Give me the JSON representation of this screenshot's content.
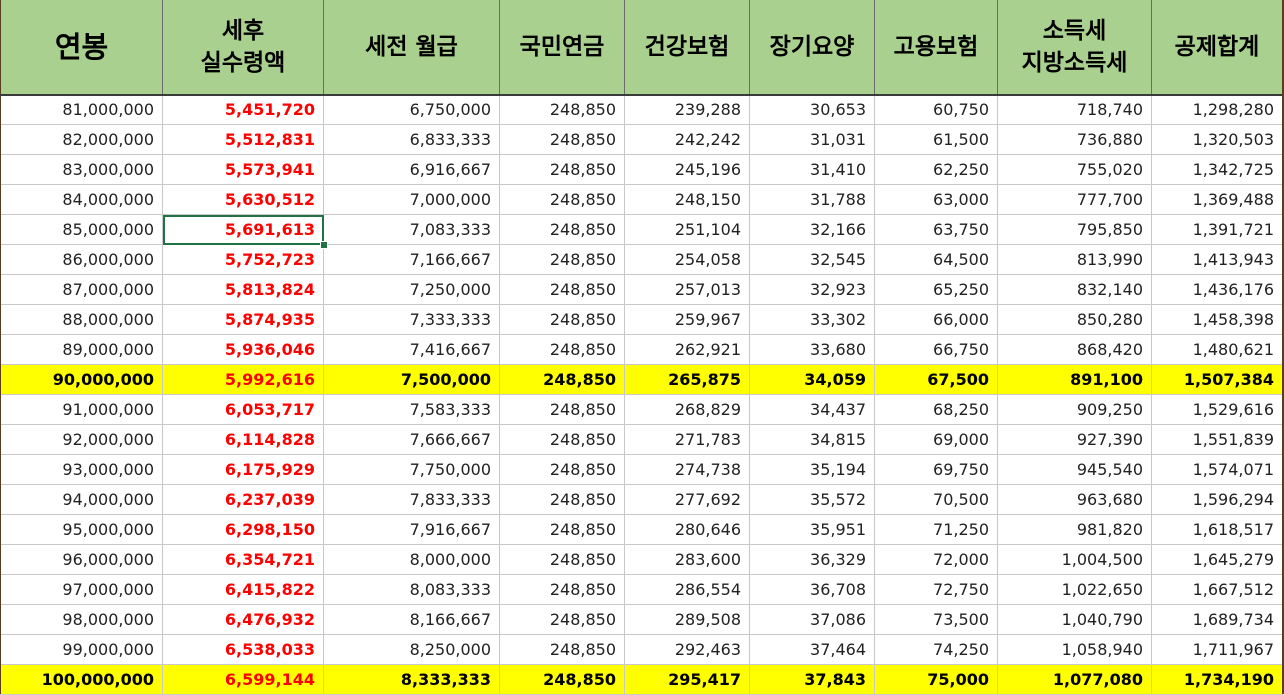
{
  "headers": [
    {
      "lines": [
        "연봉"
      ]
    },
    {
      "lines": [
        "세후",
        "실수령액"
      ]
    },
    {
      "lines": [
        "세전 월급"
      ]
    },
    {
      "lines": [
        "국민연금"
      ]
    },
    {
      "lines": [
        "건강보험"
      ]
    },
    {
      "lines": [
        "장기요양"
      ]
    },
    {
      "lines": [
        "고용보험"
      ]
    },
    {
      "lines": [
        "소득세",
        "지방소득세"
      ]
    },
    {
      "lines": [
        "공제합계"
      ]
    }
  ],
  "rows": [
    {
      "highlight": false,
      "cells": [
        "81,000,000",
        "5,451,720",
        "6,750,000",
        "248,850",
        "239,288",
        "30,653",
        "60,750",
        "718,740",
        "1,298,280"
      ]
    },
    {
      "highlight": false,
      "cells": [
        "82,000,000",
        "5,512,831",
        "6,833,333",
        "248,850",
        "242,242",
        "31,031",
        "61,500",
        "736,880",
        "1,320,503"
      ]
    },
    {
      "highlight": false,
      "cells": [
        "83,000,000",
        "5,573,941",
        "6,916,667",
        "248,850",
        "245,196",
        "31,410",
        "62,250",
        "755,020",
        "1,342,725"
      ]
    },
    {
      "highlight": false,
      "cells": [
        "84,000,000",
        "5,630,512",
        "7,000,000",
        "248,850",
        "248,150",
        "31,788",
        "63,000",
        "777,700",
        "1,369,488"
      ]
    },
    {
      "highlight": false,
      "selected_col": 1,
      "cells": [
        "85,000,000",
        "5,691,613",
        "7,083,333",
        "248,850",
        "251,104",
        "32,166",
        "63,750",
        "795,850",
        "1,391,721"
      ]
    },
    {
      "highlight": false,
      "cells": [
        "86,000,000",
        "5,752,723",
        "7,166,667",
        "248,850",
        "254,058",
        "32,545",
        "64,500",
        "813,990",
        "1,413,943"
      ]
    },
    {
      "highlight": false,
      "cells": [
        "87,000,000",
        "5,813,824",
        "7,250,000",
        "248,850",
        "257,013",
        "32,923",
        "65,250",
        "832,140",
        "1,436,176"
      ]
    },
    {
      "highlight": false,
      "cells": [
        "88,000,000",
        "5,874,935",
        "7,333,333",
        "248,850",
        "259,967",
        "33,302",
        "66,000",
        "850,280",
        "1,458,398"
      ]
    },
    {
      "highlight": false,
      "cells": [
        "89,000,000",
        "5,936,046",
        "7,416,667",
        "248,850",
        "262,921",
        "33,680",
        "66,750",
        "868,420",
        "1,480,621"
      ]
    },
    {
      "highlight": true,
      "cells": [
        "90,000,000",
        "5,992,616",
        "7,500,000",
        "248,850",
        "265,875",
        "34,059",
        "67,500",
        "891,100",
        "1,507,384"
      ]
    },
    {
      "highlight": false,
      "cells": [
        "91,000,000",
        "6,053,717",
        "7,583,333",
        "248,850",
        "268,829",
        "34,437",
        "68,250",
        "909,250",
        "1,529,616"
      ]
    },
    {
      "highlight": false,
      "cells": [
        "92,000,000",
        "6,114,828",
        "7,666,667",
        "248,850",
        "271,783",
        "34,815",
        "69,000",
        "927,390",
        "1,551,839"
      ]
    },
    {
      "highlight": false,
      "cells": [
        "93,000,000",
        "6,175,929",
        "7,750,000",
        "248,850",
        "274,738",
        "35,194",
        "69,750",
        "945,540",
        "1,574,071"
      ]
    },
    {
      "highlight": false,
      "cells": [
        "94,000,000",
        "6,237,039",
        "7,833,333",
        "248,850",
        "277,692",
        "35,572",
        "70,500",
        "963,680",
        "1,596,294"
      ]
    },
    {
      "highlight": false,
      "cells": [
        "95,000,000",
        "6,298,150",
        "7,916,667",
        "248,850",
        "280,646",
        "35,951",
        "71,250",
        "981,820",
        "1,618,517"
      ]
    },
    {
      "highlight": false,
      "cells": [
        "96,000,000",
        "6,354,721",
        "8,000,000",
        "248,850",
        "283,600",
        "36,329",
        "72,000",
        "1,004,500",
        "1,645,279"
      ]
    },
    {
      "highlight": false,
      "cells": [
        "97,000,000",
        "6,415,822",
        "8,083,333",
        "248,850",
        "286,554",
        "36,708",
        "72,750",
        "1,022,650",
        "1,667,512"
      ]
    },
    {
      "highlight": false,
      "cells": [
        "98,000,000",
        "6,476,932",
        "8,166,667",
        "248,850",
        "289,508",
        "37,086",
        "73,500",
        "1,040,790",
        "1,689,734"
      ]
    },
    {
      "highlight": false,
      "cells": [
        "99,000,000",
        "6,538,033",
        "8,250,000",
        "248,850",
        "292,463",
        "37,464",
        "74,250",
        "1,058,940",
        "1,711,967"
      ]
    },
    {
      "highlight": true,
      "cells": [
        "100,000,000",
        "6,599,144",
        "8,333,333",
        "248,850",
        "295,417",
        "37,843",
        "75,000",
        "1,077,080",
        "1,734,190"
      ]
    }
  ],
  "colors": {
    "header_bg": "#a9d08e",
    "highlight_row": "#ffff00",
    "net_pay_text": "#ff0000",
    "selection": "#217346"
  }
}
